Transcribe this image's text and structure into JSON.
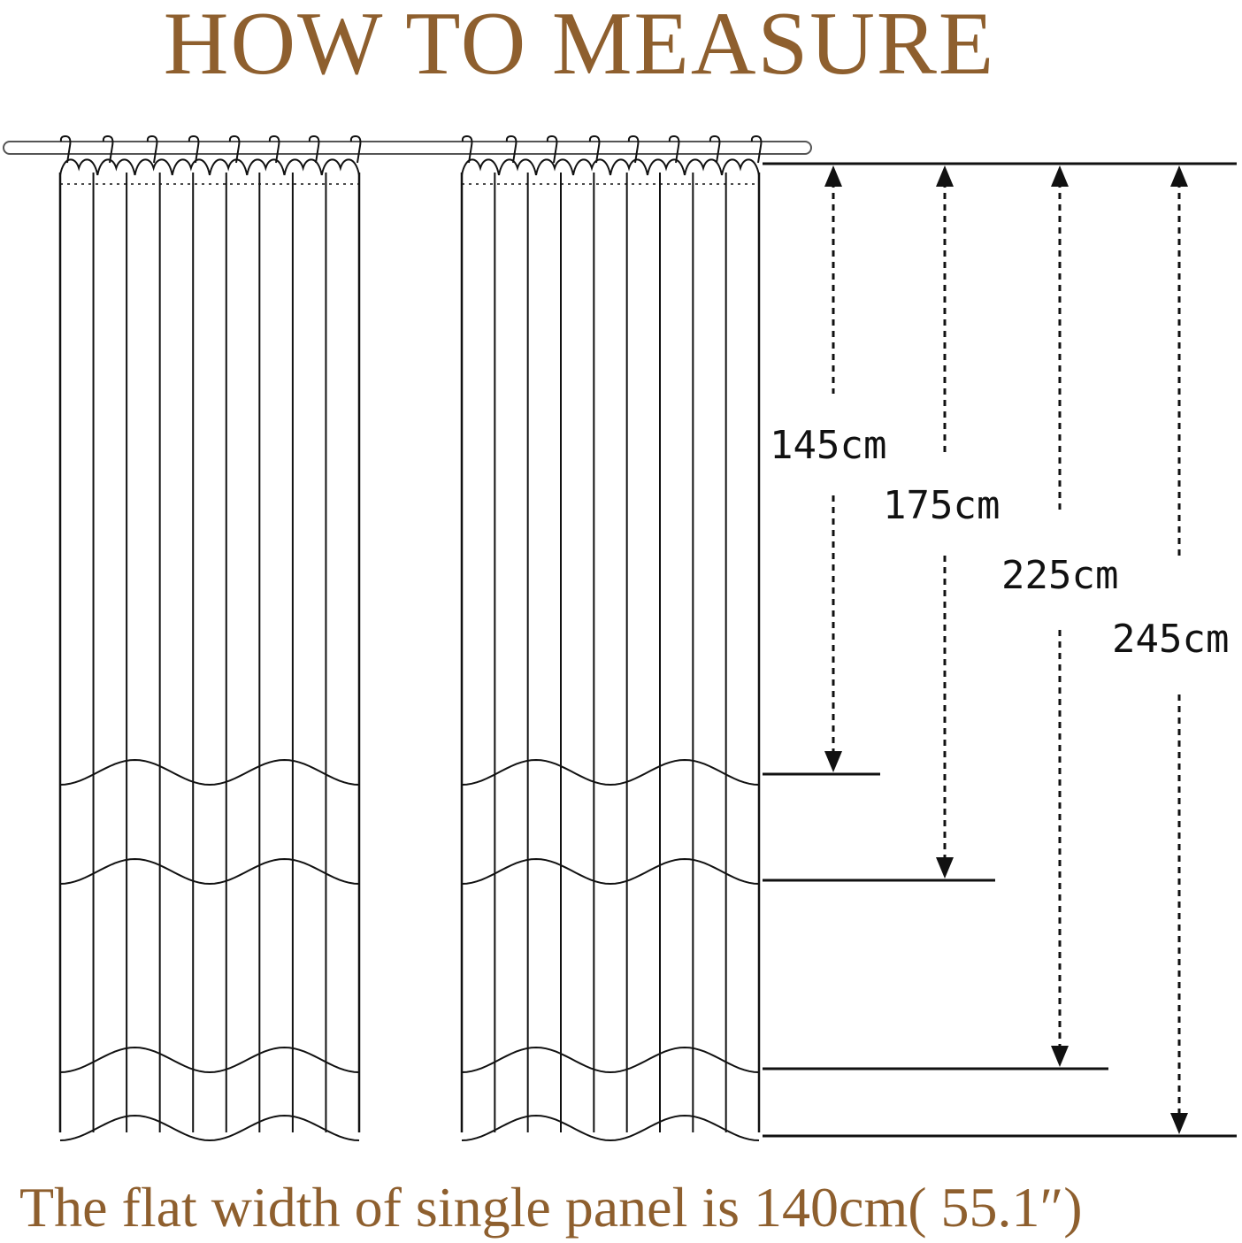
{
  "title": "HOW TO MEASURE",
  "footer": "The flat width of single panel is 140cm( 55.1″)",
  "colors": {
    "accent": "#8e5f2e",
    "line": "#111111"
  },
  "measurements": [
    {
      "label": "145cm",
      "length_cm": 145
    },
    {
      "label": "175cm",
      "length_cm": 175
    },
    {
      "label": "225cm",
      "length_cm": 225
    },
    {
      "label": "245cm",
      "length_cm": 245
    }
  ]
}
